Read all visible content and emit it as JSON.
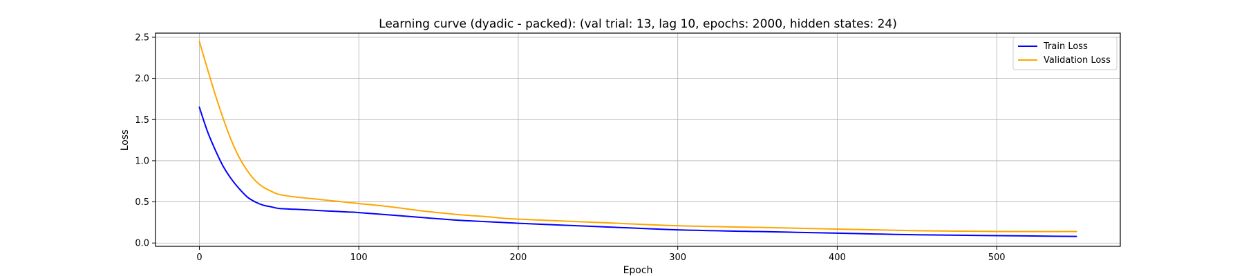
{
  "chart_data": {
    "type": "line",
    "title": "Learning curve (dyadic - packed): (val trial: 13, lag 10, epochs: 2000, hidden states: 24)",
    "xlabel": "Epoch",
    "ylabel": "Loss",
    "xlim": [
      -27.5,
      577.5
    ],
    "ylim": [
      -0.04,
      2.55
    ],
    "xticks": [
      0,
      100,
      200,
      300,
      400,
      500
    ],
    "yticks": [
      0.0,
      0.5,
      1.0,
      1.5,
      2.0,
      2.5
    ],
    "xtick_labels": [
      "0",
      "100",
      "200",
      "300",
      "400",
      "500"
    ],
    "ytick_labels": [
      "0.0",
      "0.5",
      "1.0",
      "1.5",
      "2.0",
      "2.5"
    ],
    "grid": true,
    "legend_position": "top-right",
    "series": [
      {
        "name": "Train Loss",
        "color": "#0000ff",
        "x": [
          0,
          5,
          10,
          15,
          20,
          25,
          30,
          35,
          40,
          45,
          50,
          60,
          70,
          80,
          90,
          100,
          120,
          140,
          160,
          180,
          200,
          250,
          300,
          350,
          400,
          450,
          500,
          550
        ],
        "y": [
          1.65,
          1.36,
          1.13,
          0.93,
          0.78,
          0.66,
          0.56,
          0.5,
          0.46,
          0.44,
          0.42,
          0.41,
          0.4,
          0.39,
          0.38,
          0.37,
          0.34,
          0.31,
          0.28,
          0.26,
          0.24,
          0.2,
          0.16,
          0.14,
          0.12,
          0.1,
          0.09,
          0.08
        ]
      },
      {
        "name": "Validation Loss",
        "color": "#ffa500",
        "x": [
          0,
          5,
          10,
          15,
          20,
          25,
          30,
          35,
          40,
          45,
          50,
          60,
          70,
          80,
          90,
          100,
          120,
          140,
          160,
          180,
          200,
          250,
          300,
          350,
          400,
          450,
          500,
          550
        ],
        "y": [
          2.45,
          2.12,
          1.8,
          1.51,
          1.25,
          1.04,
          0.88,
          0.76,
          0.68,
          0.63,
          0.59,
          0.56,
          0.54,
          0.52,
          0.5,
          0.48,
          0.44,
          0.39,
          0.35,
          0.32,
          0.29,
          0.25,
          0.21,
          0.19,
          0.17,
          0.15,
          0.14,
          0.14
        ]
      }
    ]
  }
}
